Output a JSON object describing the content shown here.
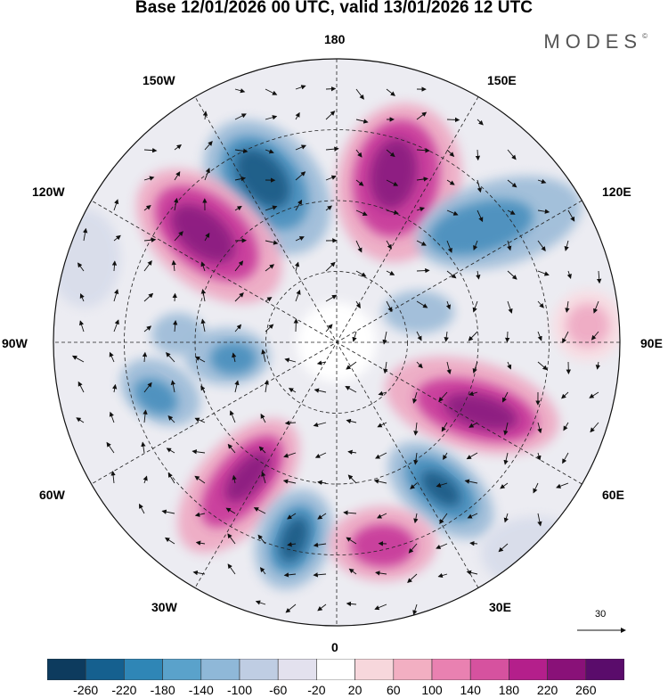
{
  "title": "Base 12/01/2026 00 UTC, valid 13/01/2026 12 UTC",
  "brand": {
    "name": "MODES",
    "mark": "©"
  },
  "longitude_labels": {
    "n0": "0",
    "n30e": "30E",
    "n60e": "60E",
    "n90e": "90E",
    "n120e": "120E",
    "n150e": "150E",
    "n180": "180",
    "n150w": "150W",
    "n120w": "120W",
    "n90w": "90W",
    "n60w": "60W",
    "n30w": "30W"
  },
  "reference_vector": {
    "value": "30"
  },
  "colorbar": {
    "colors": [
      "#0d3b5e",
      "#15608f",
      "#2f86b6",
      "#5aa2cb",
      "#8fb8d8",
      "#bfcde3",
      "#e3e1ee",
      "#ffffff",
      "#f7d7dc",
      "#f2afc2",
      "#e981b1",
      "#d6529f",
      "#b41f8b",
      "#891178",
      "#5a0c6b"
    ],
    "labels": [
      "-260",
      "-220",
      "-180",
      "-140",
      "-100",
      "-60",
      "-20",
      "20",
      "60",
      "100",
      "140",
      "180",
      "220",
      "260"
    ]
  },
  "map_colors": {
    "strong_neg": "#1c5c86",
    "mid_neg": "#4a8fbd",
    "weak_neg": "#9dbcd8",
    "faint_neg": "#d7dcea",
    "strong_pos": "#8a1a80",
    "mid_pos": "#c7399a",
    "weak_pos": "#eea9c3",
    "faint_pos": "#f8dce2"
  }
}
